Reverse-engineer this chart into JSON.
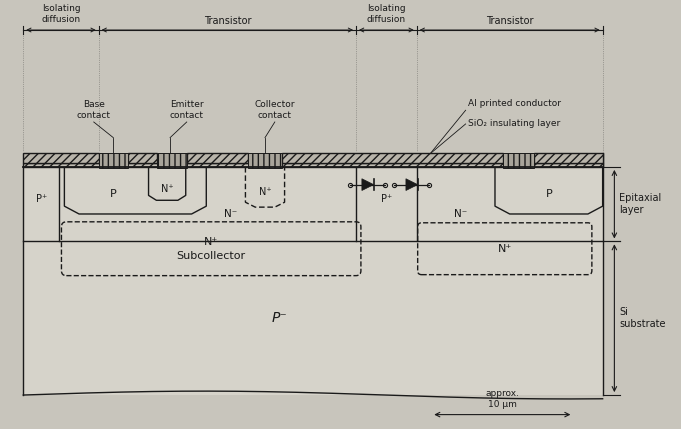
{
  "bg_color": "#c8c5bc",
  "line_color": "#1a1a1a",
  "fig_width": 6.81,
  "fig_height": 4.29,
  "dpi": 100,
  "labels": {
    "isolating_left": "Isolating\ndiffusion",
    "transistor_left": "Transistor",
    "isolating_right": "Isolating\ndiffusion",
    "transistor_right": "Transistor",
    "base_contact": "Base\ncontact",
    "emitter_contact": "Emitter\ncontact",
    "collector_contact": "Collector\ncontact",
    "al_printed": "Al printed conductor",
    "sio2": "SiO₂ insulating layer",
    "epitaxial": "Epitaxial\nlayer",
    "si_substrate": "Si\nsubstrate",
    "p_minus": "P⁻",
    "n_plus_subcollector": "N⁺\nSubcollector",
    "approx_10um": "approx.\n10 μm",
    "N_minus": "N⁻",
    "N_plus": "N⁺",
    "P_plus": "P⁺",
    "P": "P"
  }
}
